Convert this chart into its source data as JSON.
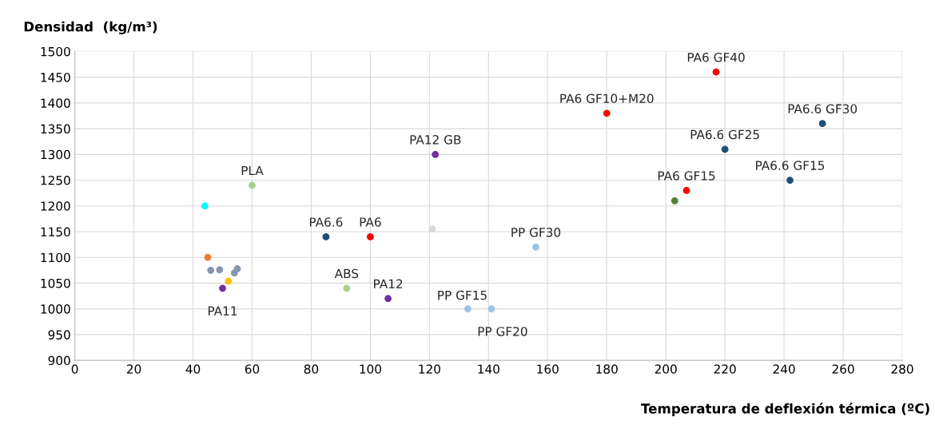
{
  "chart_data": {
    "type": "scatter",
    "xlabel": "Temperatura de deflexión térmica (ºC)",
    "ylabel": "Densidad  (kg/m³)",
    "xlim": [
      0,
      280
    ],
    "xticks": [
      0,
      20,
      40,
      60,
      80,
      100,
      120,
      140,
      160,
      180,
      200,
      220,
      240,
      260,
      280
    ],
    "ylim": [
      900,
      1500
    ],
    "yticks": [
      900,
      950,
      1000,
      1050,
      1100,
      1150,
      1200,
      1250,
      1300,
      1350,
      1400,
      1450,
      1500
    ],
    "grid": true,
    "marker": "circle",
    "x": [
      217,
      180,
      253,
      220,
      242,
      207,
      203,
      122,
      60,
      44,
      85,
      100,
      121,
      156,
      45,
      46,
      49,
      55,
      54,
      52,
      50,
      92,
      106,
      133,
      141
    ],
    "values": [
      1460,
      1380,
      1360,
      1310,
      1250,
      1230,
      1210,
      1300,
      1240,
      1200,
      1140,
      1140,
      1155,
      1120,
      1100,
      1075,
      1076,
      1078,
      1070,
      1054,
      1040,
      1040,
      1020,
      1000,
      1000
    ],
    "colors": [
      "#ff0000",
      "#ff0000",
      "#1f4e79",
      "#1f4e79",
      "#1f4e79",
      "#ff0000",
      "#548235",
      "#7030a0",
      "#a9d18e",
      "#00ffff",
      "#1f4e79",
      "#ff0000",
      "#d9d9d9",
      "#9dc3e6",
      "#ed7d31",
      "#8497b0",
      "#8497b0",
      "#8497b0",
      "#8497b0",
      "#ffc000",
      "#7030a0",
      "#a9d18e",
      "#7030a0",
      "#9dc3e6",
      "#9dc3e6"
    ],
    "annotations": [
      {
        "text": "PA6 GF40",
        "x": 217,
        "y": 1460
      },
      {
        "text": "PA6 GF10+M20",
        "x": 180,
        "y": 1380
      },
      {
        "text": "PA6.6 GF30",
        "x": 253,
        "y": 1360
      },
      {
        "text": "PA6.6 GF25",
        "x": 220,
        "y": 1310
      },
      {
        "text": "PA6.6 GF15",
        "x": 242,
        "y": 1250
      },
      {
        "text": "PA6 GF15",
        "x": 207,
        "y": 1230
      },
      {
        "text": "PA12 GB",
        "x": 122,
        "y": 1300
      },
      {
        "text": "PLA",
        "x": 60,
        "y": 1240
      },
      {
        "text": "PA6.6",
        "x": 85,
        "y": 1140
      },
      {
        "text": "PA6",
        "x": 100,
        "y": 1140
      },
      {
        "text": "PP GF30",
        "x": 156,
        "y": 1120
      },
      {
        "text": "PA11",
        "x": 50,
        "y": 1040
      },
      {
        "text": "ABS",
        "x": 92,
        "y": 1040
      },
      {
        "text": "PA12",
        "x": 106,
        "y": 1020
      },
      {
        "text": "PP GF15",
        "x": 133,
        "y": 1000
      },
      {
        "text": "PP GF20",
        "x": 141,
        "y": 1000
      }
    ]
  }
}
